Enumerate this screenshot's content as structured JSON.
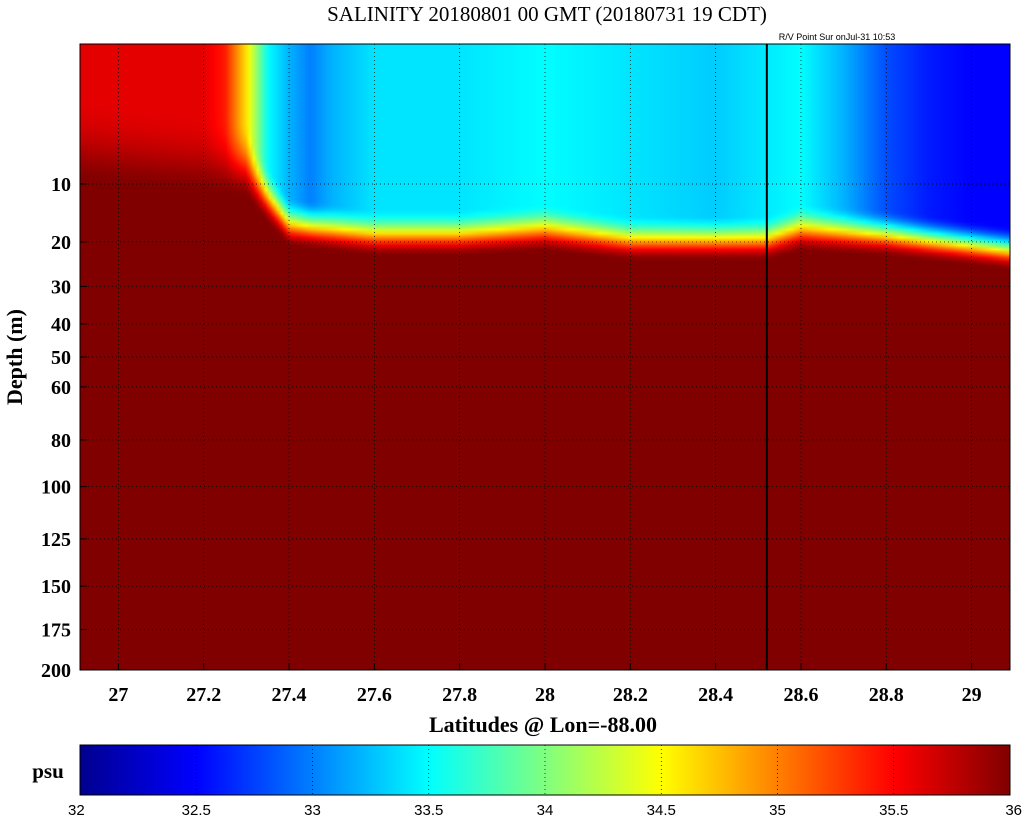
{
  "chart_data": {
    "type": "heatmap",
    "title": "SALINITY 20180801 00 GMT (20180731 19 CDT)",
    "annotation": "R/V Point Sur onJul-31 10:53",
    "xlabel": "Latitudes @ Lon=-88.00",
    "ylabel": "Depth (m)",
    "xlim": [
      26.91,
      29.09
    ],
    "ylim": [
      200,
      0
    ],
    "y_scale": "sqrt",
    "x_ticks": [
      27,
      27.2,
      27.4,
      27.6,
      27.8,
      28,
      28.2,
      28.4,
      28.6,
      28.8,
      29
    ],
    "x_tick_labels": [
      "27",
      "27.2",
      "27.4",
      "27.6",
      "27.8",
      "28",
      "28.2",
      "28.4",
      "28.6",
      "28.8",
      "29"
    ],
    "y_ticks": [
      10,
      20,
      30,
      40,
      50,
      60,
      80,
      100,
      125,
      150,
      175,
      200
    ],
    "y_tick_labels": [
      "10",
      "20",
      "30",
      "40",
      "50",
      "60",
      "80",
      "100",
      "125",
      "150",
      "175",
      "200"
    ],
    "grid": true,
    "colorbar": {
      "unit": "psu",
      "range": [
        32,
        36
      ],
      "colormap": "jet",
      "ticks": [
        32,
        32.5,
        33,
        33.5,
        34,
        34.5,
        35,
        35.5,
        36
      ],
      "tick_labels": [
        "32",
        "32.5",
        "33",
        "33.5",
        "34",
        "34.5",
        "35",
        "35.5",
        "36"
      ]
    },
    "vertical_line_latitude": 28.52,
    "surface_salinity_psu": {
      "latitude": [
        26.91,
        27.0,
        27.2,
        27.25,
        27.3,
        27.35,
        27.4,
        27.45,
        27.5,
        27.6,
        27.8,
        28.0,
        28.2,
        28.4,
        28.5,
        28.6,
        28.7,
        28.8,
        28.9,
        29.0,
        29.09
      ],
      "values": [
        35.6,
        35.6,
        35.6,
        35.4,
        34.6,
        33.5,
        33.2,
        33.0,
        33.2,
        33.4,
        33.4,
        33.5,
        33.4,
        33.3,
        33.4,
        33.5,
        33.2,
        32.8,
        32.6,
        32.5,
        32.5
      ]
    },
    "mixed_layer_depth_m": {
      "latitude": [
        26.91,
        27.3,
        27.4,
        27.6,
        27.8,
        28.0,
        28.2,
        28.4,
        28.52,
        28.6,
        28.8,
        29.0,
        29.09
      ],
      "values": [
        1,
        3,
        12,
        14,
        14,
        13,
        15,
        15,
        15,
        13,
        14,
        16,
        17
      ]
    },
    "halocline_thickness_m": 9,
    "deep_salinity_psu": 36.0
  }
}
